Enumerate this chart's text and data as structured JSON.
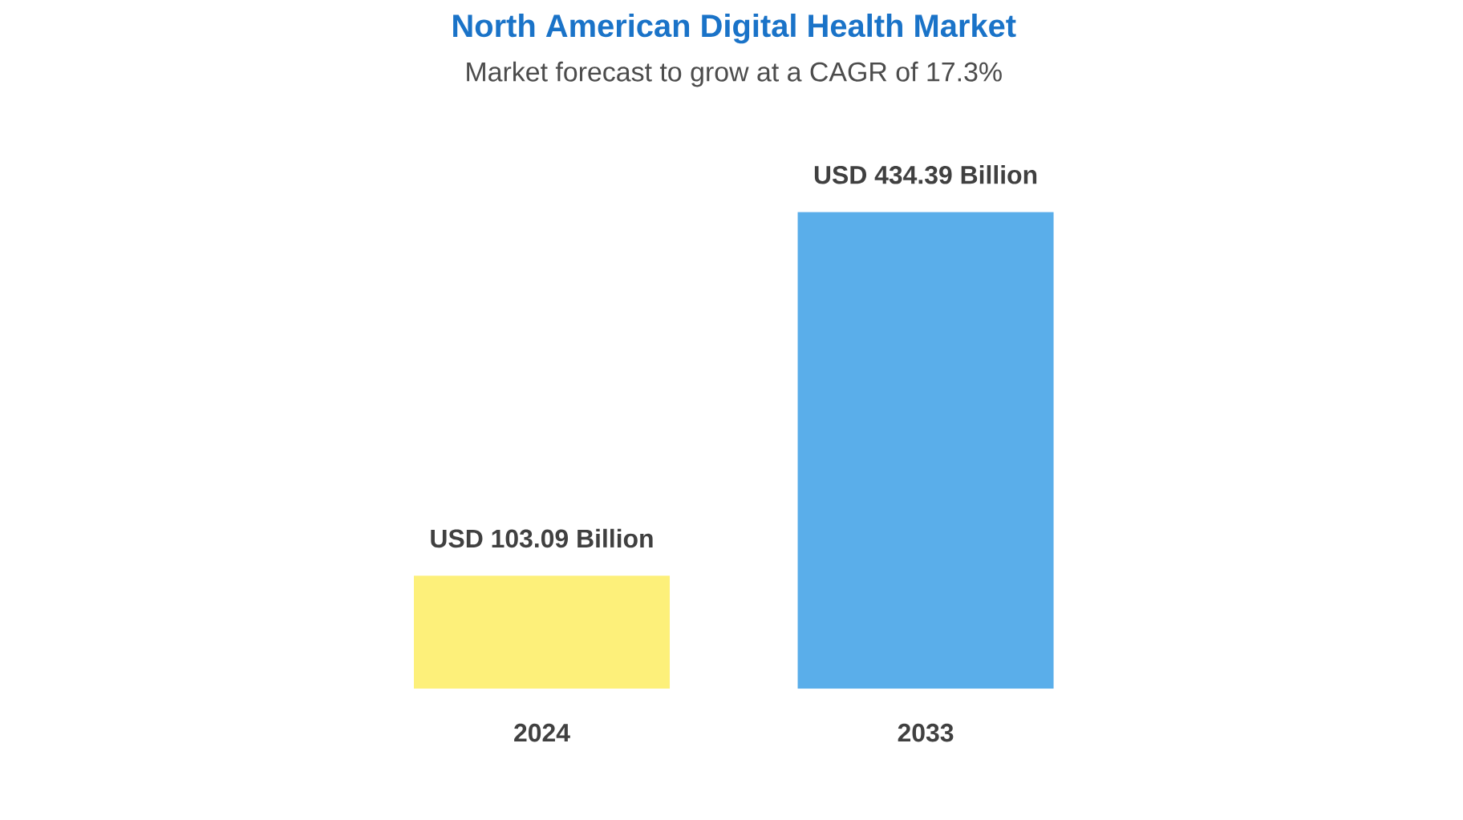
{
  "chart_data": {
    "type": "bar",
    "title": "North American Digital Health Market",
    "subtitle": "Market forecast to grow at a CAGR of 17.3%",
    "categories": [
      "2024",
      "2033"
    ],
    "values": [
      103.09,
      434.39
    ],
    "colors": [
      "#fdf07a",
      "#5aaeea"
    ],
    "value_labels": [
      "USD 103.09 Billion",
      "USD 434.39 Billion"
    ]
  }
}
